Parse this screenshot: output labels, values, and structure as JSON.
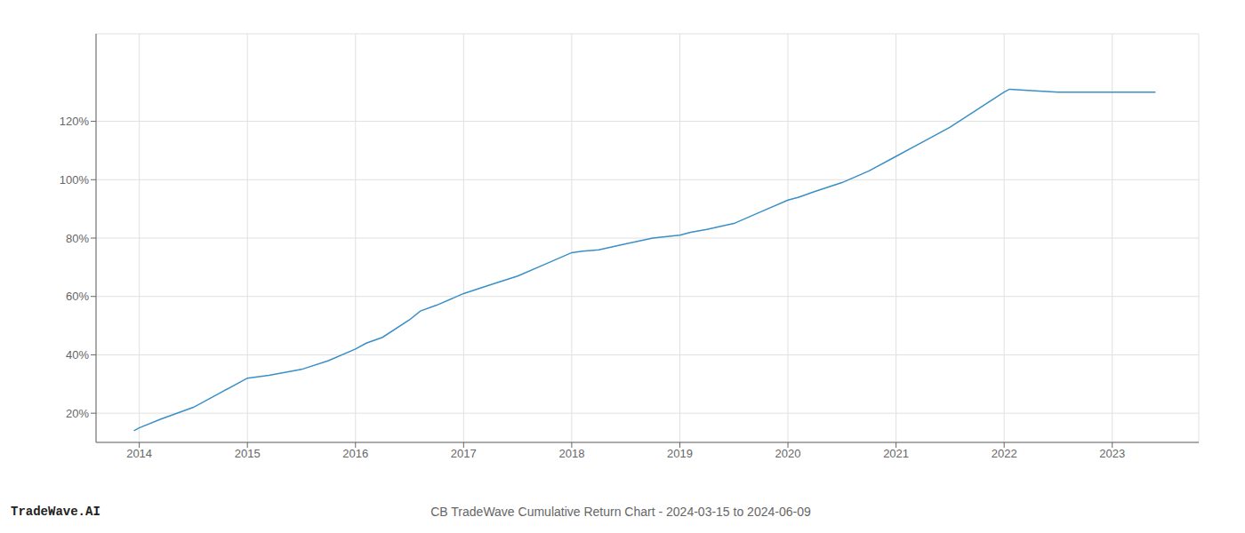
{
  "chart_data": {
    "type": "line",
    "title": "CB TradeWave Cumulative Return Chart - 2024-03-15 to 2024-06-09",
    "annotations": [
      "TradeWave.AI"
    ],
    "color": "#3a8fc7",
    "grid": true,
    "x": [
      2013.95,
      2014.0,
      2014.2,
      2014.5,
      2014.75,
      2015.0,
      2015.2,
      2015.5,
      2015.75,
      2016.0,
      2016.1,
      2016.25,
      2016.5,
      2016.6,
      2016.75,
      2017.0,
      2017.25,
      2017.5,
      2017.75,
      2018.0,
      2018.1,
      2018.25,
      2018.5,
      2018.75,
      2019.0,
      2019.1,
      2019.25,
      2019.5,
      2019.75,
      2020.0,
      2020.1,
      2020.25,
      2020.5,
      2020.75,
      2021.0,
      2021.25,
      2021.5,
      2021.75,
      2022.0,
      2022.05,
      2022.25,
      2022.5,
      2022.75,
      2023.0,
      2023.4
    ],
    "values": [
      14,
      15,
      18,
      22,
      27,
      32,
      33,
      35,
      38,
      42,
      44,
      46,
      52,
      55,
      57,
      61,
      64,
      67,
      71,
      75,
      75.5,
      76,
      78,
      80,
      81,
      82,
      83,
      85,
      89,
      93,
      94,
      96,
      99,
      103,
      108,
      113,
      118,
      124,
      130,
      131,
      130.5,
      130,
      130,
      130,
      130
    ],
    "xlim": [
      2013.6,
      2023.8
    ],
    "ylim": [
      10,
      150
    ],
    "xticks": [
      2014,
      2015,
      2016,
      2017,
      2018,
      2019,
      2020,
      2021,
      2022,
      2023
    ],
    "yticks": [
      {
        "value": 20,
        "label": "20%"
      },
      {
        "value": 40,
        "label": "40%"
      },
      {
        "value": 60,
        "label": "60%"
      },
      {
        "value": 80,
        "label": "80%"
      },
      {
        "value": 100,
        "label": "100%"
      },
      {
        "value": 120,
        "label": "120%"
      }
    ]
  }
}
